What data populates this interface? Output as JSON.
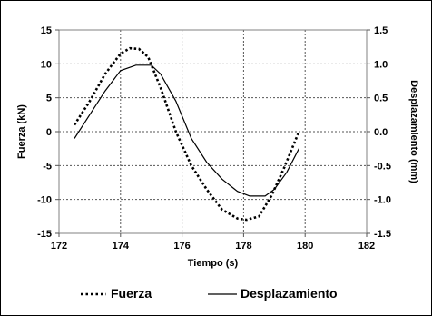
{
  "chart_data": {
    "type": "line",
    "xlabel": "Tiempo (s)",
    "ylabel_left": "Fuerza (kN)",
    "ylabel_right": "Desplazamiento (mm)",
    "xlim": [
      172,
      182
    ],
    "ylim_left": [
      -15,
      15
    ],
    "ylim_right": [
      -1.5,
      1.5
    ],
    "x_ticks": [
      "172",
      "174",
      "176",
      "178",
      "180",
      "182"
    ],
    "y_left_ticks": [
      "15",
      "10",
      "5",
      "0",
      "-5",
      "-10",
      "-15"
    ],
    "y_right_ticks": [
      "1.5",
      "1.0",
      "0.5",
      "0.0",
      "-0.5",
      "-1.0",
      "-1.5"
    ],
    "grid": true,
    "legend_position": "bottom",
    "series": [
      {
        "name": "Fuerza",
        "axis": "left",
        "style": "dotted",
        "color": "#000000",
        "x": [
          172.5,
          173.0,
          173.5,
          174.0,
          174.3,
          174.6,
          174.9,
          175.3,
          175.8,
          176.3,
          176.8,
          177.3,
          177.8,
          178.1,
          178.5,
          178.9,
          179.3,
          179.8
        ],
        "y": [
          1.0,
          4.5,
          8.5,
          11.5,
          12.3,
          12.2,
          11.0,
          6.5,
          0.0,
          -5.0,
          -8.5,
          -11.5,
          -12.8,
          -13.0,
          -12.5,
          -9.5,
          -5.5,
          0.0
        ]
      },
      {
        "name": "Desplazamiento",
        "axis": "right",
        "style": "solid",
        "color": "#000000",
        "x": [
          172.5,
          173.0,
          173.5,
          174.0,
          174.5,
          175.0,
          175.3,
          175.8,
          176.3,
          176.8,
          177.3,
          177.8,
          178.2,
          178.7,
          179.0,
          179.4,
          179.8
        ],
        "y": [
          -0.1,
          0.25,
          0.6,
          0.9,
          0.98,
          0.98,
          0.85,
          0.45,
          -0.1,
          -0.45,
          -0.7,
          -0.88,
          -0.95,
          -0.95,
          -0.85,
          -0.6,
          -0.25
        ]
      }
    ]
  }
}
